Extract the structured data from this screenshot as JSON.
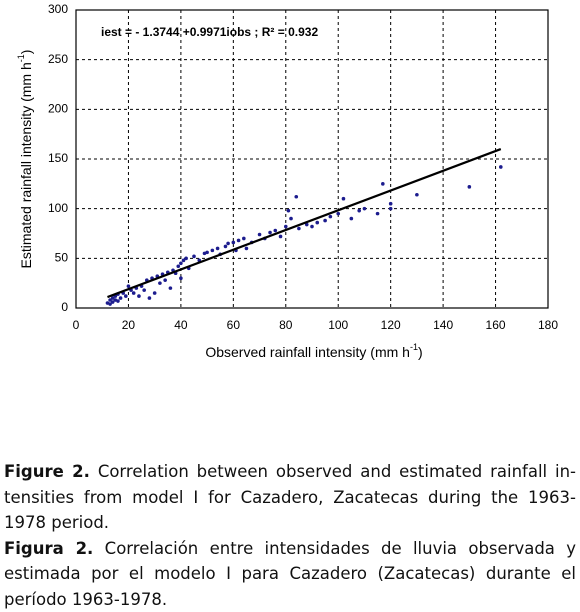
{
  "chart_data": {
    "type": "scatter",
    "annotation": "iest = - 1.3744 +0.9971iobs ;  R² = 0.932",
    "xlabel": {
      "text": "Observed  rainfall intensity (mm h",
      "sup": "-1",
      "end": ")"
    },
    "ylabel": {
      "text": "Estimated rainfall intensity (mm h",
      "sup": "-1",
      "end": ")"
    },
    "xlim": [
      0,
      180
    ],
    "xticks": [
      0,
      20,
      40,
      60,
      80,
      100,
      120,
      140,
      160,
      180
    ],
    "ylim": [
      0,
      300
    ],
    "yticks": [
      0,
      50,
      100,
      150,
      200,
      250,
      300
    ],
    "grid": true,
    "series": [
      {
        "type": "scatter",
        "color": "#1c1c8e",
        "x": [
          12,
          13,
          13,
          14,
          14,
          15,
          15,
          16,
          16,
          17,
          18,
          19,
          20,
          21,
          22,
          23,
          24,
          25,
          26,
          27,
          28,
          29,
          30,
          31,
          32,
          33,
          34,
          35,
          36,
          37,
          38,
          39,
          40,
          40,
          41,
          42,
          43,
          45,
          47,
          49,
          50,
          52,
          54,
          55,
          57,
          58,
          60,
          61,
          62,
          64,
          65,
          67,
          70,
          72,
          74,
          76,
          78,
          80,
          81,
          82,
          84,
          85,
          88,
          90,
          92,
          95,
          97,
          100,
          102,
          105,
          108,
          110,
          115,
          117,
          120,
          120,
          130,
          150,
          162
        ],
        "values": [
          5,
          8,
          4,
          6,
          10,
          8,
          12,
          7,
          14,
          10,
          15,
          12,
          22,
          18,
          15,
          20,
          12,
          22,
          18,
          28,
          10,
          30,
          15,
          32,
          25,
          34,
          28,
          36,
          20,
          38,
          35,
          42,
          45,
          30,
          48,
          50,
          40,
          52,
          48,
          55,
          56,
          58,
          60,
          54,
          62,
          65,
          66,
          58,
          68,
          70,
          60,
          66,
          74,
          70,
          76,
          78,
          72,
          82,
          98,
          90,
          112,
          80,
          84,
          82,
          86,
          88,
          92,
          95,
          110,
          90,
          98,
          100,
          95,
          125,
          100,
          105,
          114,
          122,
          142
        ]
      },
      {
        "type": "line",
        "color": "#000000",
        "x": [
          12,
          162
        ],
        "values": [
          11,
          160
        ]
      }
    ]
  },
  "captions": [
    {
      "label": "Figure 2.",
      "lines": [
        "Correlation between observed and estimated rainfall in-",
        "tensities from model I for Cazadero, Zacatecas during the 1963-",
        "1978 period."
      ]
    },
    {
      "label": "Figura 2.",
      "lines": [
        "Correlación entre intensidades de lluvia observada y",
        "estimada por el modelo I para Cazadero (Zacatecas) durante el",
        "período 1963-1978."
      ]
    }
  ]
}
